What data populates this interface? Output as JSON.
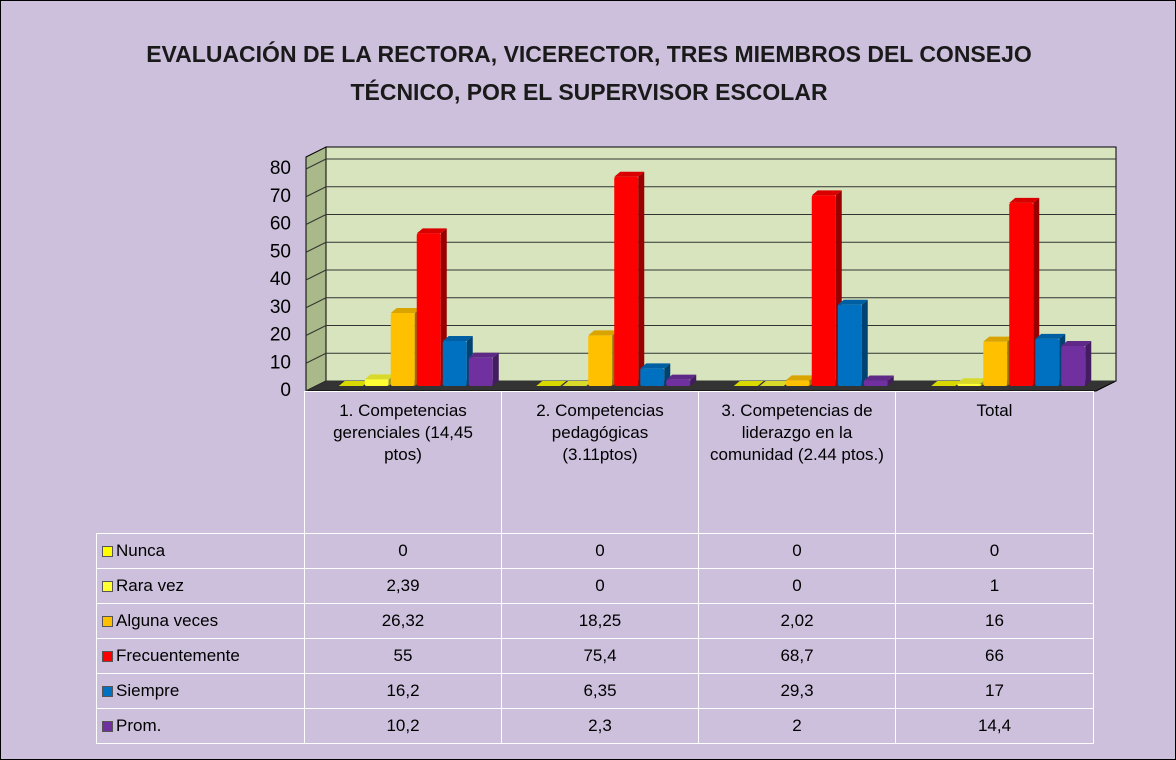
{
  "chart_data": {
    "type": "bar3d",
    "title": "EVALUACIÓN  DE LA RECTORA, VICERECTOR, TRES MIEMBROS DEL CONSEJO TÉCNICO, POR EL SUPERVISOR ESCOLAR",
    "categories": [
      "1. Competencias gerenciales (14,45 ptos)",
      "2. Competencias pedagógicas (3.11ptos)",
      "3. Competencias de liderazgo en la  comunidad (2.44 ptos.)",
      "Total"
    ],
    "series": [
      {
        "name": "Nunca",
        "color": "#ffff00",
        "values": [
          0,
          0,
          0,
          0
        ],
        "value_labels": [
          "0",
          "0",
          "0",
          "0"
        ]
      },
      {
        "name": "Rara vez",
        "color": "#ffff33",
        "values": [
          2.39,
          0,
          0,
          1
        ],
        "value_labels": [
          "2,39",
          "0",
          "0",
          "1"
        ]
      },
      {
        "name": "Alguna veces",
        "color": "#ffc000",
        "values": [
          26.32,
          18.25,
          2.02,
          16
        ],
        "value_labels": [
          "26,32",
          "18,25",
          "2,02",
          "16"
        ]
      },
      {
        "name": "Frecuentemente",
        "color": "#ff0000",
        "values": [
          55,
          75.4,
          68.7,
          66
        ],
        "value_labels": [
          "55",
          "75,4",
          "68,7",
          "66"
        ]
      },
      {
        "name": "Siempre",
        "color": "#0070c0",
        "values": [
          16.2,
          6.35,
          29.3,
          17
        ],
        "value_labels": [
          "16,2",
          "6,35",
          "29,3",
          "17"
        ]
      },
      {
        "name": "Prom.",
        "color": "#7030a0",
        "values": [
          10.2,
          2.3,
          2,
          14.4
        ],
        "value_labels": [
          "10,2",
          "2,3",
          "2",
          "14,4"
        ]
      }
    ],
    "ylim": [
      0,
      80
    ],
    "yticks": [
      0,
      10,
      20,
      30,
      40,
      50,
      60,
      70,
      80
    ],
    "grid": true,
    "data_table": true
  }
}
